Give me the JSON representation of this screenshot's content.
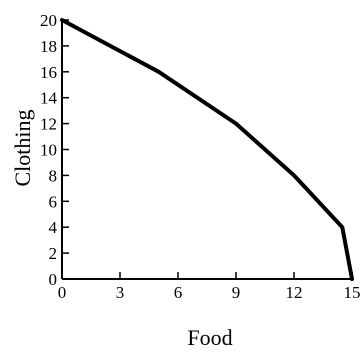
{
  "chart_data": {
    "type": "line",
    "title": "",
    "xlabel": "Food",
    "ylabel": "Clothing",
    "xlim": [
      0,
      15
    ],
    "ylim": [
      0,
      20
    ],
    "x_ticks": [
      "0",
      "3",
      "6",
      "9",
      "12",
      "15"
    ],
    "y_ticks": [
      "0",
      "2",
      "4",
      "6",
      "8",
      "10",
      "12",
      "14",
      "16",
      "18",
      "20"
    ],
    "grid": false,
    "legend": "none",
    "series": [
      {
        "x": [
          0,
          5,
          9,
          12,
          14.5,
          15
        ],
        "y": [
          20,
          16,
          12,
          8,
          4,
          0
        ]
      }
    ],
    "colors": {
      "line": "#000000",
      "axis": "#000000"
    }
  }
}
